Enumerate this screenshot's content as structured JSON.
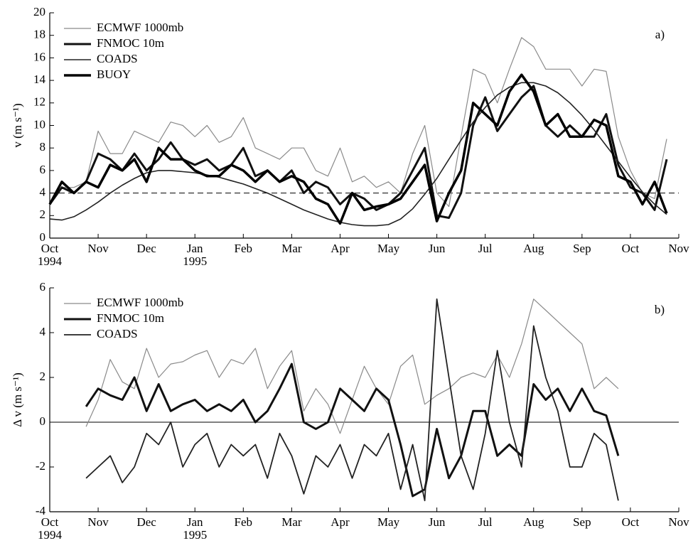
{
  "chart_data": [
    {
      "type": "line",
      "panel_label": "a)",
      "ylabel": "v (m s⁻¹)",
      "x": [
        0,
        0.25,
        0.5,
        0.75,
        1,
        1.25,
        1.5,
        1.75,
        2,
        2.25,
        2.5,
        2.75,
        3,
        3.25,
        3.5,
        3.75,
        4,
        4.25,
        4.5,
        4.75,
        5,
        5.25,
        5.5,
        5.75,
        6,
        6.25,
        6.5,
        6.75,
        7,
        7.25,
        7.5,
        7.75,
        8,
        8.25,
        8.5,
        8.75,
        9,
        9.25,
        9.5,
        9.75,
        10,
        10.25,
        10.5,
        10.75,
        11,
        11.25,
        11.5,
        11.75,
        12,
        12.25,
        12.5,
        12.75
      ],
      "xlim": [
        0,
        13
      ],
      "xticks": [
        {
          "value": 0,
          "label": "Oct"
        },
        {
          "value": 1,
          "label": "Nov"
        },
        {
          "value": 2,
          "label": "Dec"
        },
        {
          "value": 3,
          "label": "Jan"
        },
        {
          "value": 4,
          "label": "Feb"
        },
        {
          "value": 5,
          "label": "Mar"
        },
        {
          "value": 6,
          "label": "Apr"
        },
        {
          "value": 7,
          "label": "May"
        },
        {
          "value": 8,
          "label": "Jun"
        },
        {
          "value": 9,
          "label": "Jul"
        },
        {
          "value": 10,
          "label": "Aug"
        },
        {
          "value": 11,
          "label": "Sep"
        },
        {
          "value": 12,
          "label": "Oct"
        },
        {
          "value": 13,
          "label": "Nov"
        }
      ],
      "year_labels": [
        {
          "value": 0,
          "label": "1994"
        },
        {
          "value": 3,
          "label": "1995"
        }
      ],
      "ylim": [
        0,
        20
      ],
      "yticks": [
        0,
        2,
        4,
        6,
        8,
        10,
        12,
        14,
        16,
        18,
        20
      ],
      "hline": 4,
      "hline_dashed": true,
      "series": [
        {
          "name": "ECMWF 1000mb",
          "color": "#8a8a8a",
          "line_width": 1.2,
          "values": [
            3,
            4.5,
            4.5,
            5,
            9.5,
            7.5,
            7.5,
            9.5,
            9,
            8.5,
            10.3,
            10,
            9,
            10,
            8.5,
            9,
            10.7,
            8,
            7.5,
            7,
            8,
            8,
            6,
            5.5,
            8,
            5,
            5.5,
            4.5,
            5,
            4,
            7.5,
            10,
            4,
            2.8,
            9,
            15,
            14.5,
            12,
            15,
            17.8,
            17,
            15,
            15,
            15,
            13.5,
            15,
            14.8,
            9,
            6,
            4,
            3.5,
            8.8
          ]
        },
        {
          "name": "FNMOC 10m",
          "color": "#111111",
          "line_width": 3,
          "values": [
            3,
            4.5,
            4,
            5,
            7.5,
            7,
            6,
            7.5,
            6,
            7,
            8.5,
            7,
            6.5,
            7,
            6,
            6.5,
            8,
            5.5,
            6,
            5,
            6,
            4,
            5,
            4.5,
            3,
            4,
            3.5,
            2.5,
            3,
            4,
            6,
            8,
            2,
            1.8,
            4,
            10,
            12.5,
            9.5,
            11,
            12.5,
            13.5,
            10,
            9,
            10,
            9,
            9,
            11,
            6.5,
            4.5,
            4,
            2.5,
            7
          ]
        },
        {
          "name": "COADS",
          "color": "#222222",
          "line_width": 1.6,
          "values": [
            1.7,
            1.6,
            1.9,
            2.5,
            3.2,
            4,
            4.7,
            5.3,
            5.8,
            6,
            6,
            5.9,
            5.8,
            5.6,
            5.4,
            5.1,
            4.8,
            4.4,
            4,
            3.5,
            3,
            2.5,
            2.1,
            1.7,
            1.4,
            1.2,
            1.1,
            1.1,
            1.2,
            1.7,
            2.6,
            3.9,
            5.3,
            7,
            8.7,
            10.3,
            11.6,
            12.7,
            13.4,
            13.8,
            13.8,
            13.5,
            12.9,
            12,
            10.9,
            9.6,
            8.2,
            6.8,
            5.4,
            4.1,
            3,
            2.1
          ]
        },
        {
          "name": "BUOY",
          "color": "#000000",
          "line_width": 3.5,
          "values": [
            3,
            5,
            4,
            5,
            4.5,
            6.5,
            6,
            7,
            5,
            8,
            7,
            7,
            6,
            5.5,
            5.5,
            6.5,
            6,
            5,
            6,
            5,
            5.5,
            5,
            3.5,
            3,
            1.3,
            4,
            2.5,
            2.8,
            3,
            3.5,
            5,
            6.5,
            1.5,
            4,
            6,
            12,
            11,
            10,
            13,
            14.5,
            13,
            10,
            11,
            9,
            9,
            10.5,
            10,
            5.5,
            5,
            3,
            5,
            2.2
          ]
        }
      ]
    },
    {
      "type": "line",
      "panel_label": "b)",
      "ylabel": "Δ v (m s⁻¹)",
      "x": [
        0.75,
        1,
        1.25,
        1.5,
        1.75,
        2,
        2.25,
        2.5,
        2.75,
        3,
        3.25,
        3.5,
        3.75,
        4,
        4.25,
        4.5,
        4.75,
        5,
        5.25,
        5.5,
        5.75,
        6,
        6.25,
        6.5,
        6.75,
        7,
        7.25,
        7.5,
        7.75,
        8,
        8.25,
        8.5,
        8.75,
        9,
        9.25,
        9.5,
        9.75,
        10,
        10.25,
        10.5,
        10.75,
        11,
        11.25,
        11.5,
        11.75
      ],
      "xlim": [
        0,
        13
      ],
      "xticks": [
        {
          "value": 0,
          "label": "Oct"
        },
        {
          "value": 1,
          "label": "Nov"
        },
        {
          "value": 2,
          "label": "Dec"
        },
        {
          "value": 3,
          "label": "Jan"
        },
        {
          "value": 4,
          "label": "Feb"
        },
        {
          "value": 5,
          "label": "Mar"
        },
        {
          "value": 6,
          "label": "Apr"
        },
        {
          "value": 7,
          "label": "May"
        },
        {
          "value": 8,
          "label": "Jun"
        },
        {
          "value": 9,
          "label": "Jul"
        },
        {
          "value": 10,
          "label": "Aug"
        },
        {
          "value": 11,
          "label": "Sep"
        },
        {
          "value": 12,
          "label": "Oct"
        },
        {
          "value": 13,
          "label": "Nov"
        }
      ],
      "year_labels": [
        {
          "value": 0,
          "label": "1994"
        },
        {
          "value": 3,
          "label": "1995"
        }
      ],
      "ylim": [
        -4,
        6
      ],
      "yticks": [
        -4,
        -2,
        0,
        2,
        4,
        6
      ],
      "hline": 0,
      "hline_dashed": false,
      "series": [
        {
          "name": "ECMWF 1000mb",
          "color": "#8a8a8a",
          "line_width": 1.2,
          "values": [
            -0.2,
            1,
            2.8,
            1.8,
            1.5,
            3.3,
            2,
            2.6,
            2.7,
            3,
            3.2,
            2,
            2.8,
            2.6,
            3.3,
            1.5,
            2.5,
            3.2,
            0.5,
            1.5,
            0.8,
            -0.5,
            1,
            2.5,
            1.5,
            0.8,
            2.5,
            3,
            0.8,
            1.2,
            1.5,
            2,
            2.2,
            2,
            3,
            2,
            3.5,
            5.5,
            5,
            4.5,
            4,
            3.5,
            1.5,
            2,
            1.5
          ]
        },
        {
          "name": "FNMOC 10m",
          "color": "#111111",
          "line_width": 3,
          "values": [
            0.7,
            1.5,
            1.2,
            1,
            2,
            0.5,
            1.7,
            0.5,
            0.8,
            1,
            0.5,
            0.8,
            0.5,
            1,
            0,
            0.5,
            1.5,
            2.6,
            0,
            -0.3,
            0,
            1.5,
            1,
            0.5,
            1.5,
            1,
            -1,
            -3.3,
            -3,
            -0.3,
            -2.5,
            -1.5,
            0.5,
            0.5,
            -1.5,
            -1,
            -1.5,
            1.7,
            1,
            1.5,
            0.5,
            1.5,
            0.5,
            0.3,
            -1.5
          ]
        },
        {
          "name": "COADS",
          "color": "#222222",
          "line_width": 1.8,
          "values": [
            -2.5,
            -2,
            -1.5,
            -2.7,
            -2,
            -0.5,
            -1,
            0,
            -2,
            -1,
            -0.5,
            -2,
            -1,
            -1.5,
            -1,
            -2.5,
            -0.5,
            -1.5,
            -3.2,
            -1.5,
            -2,
            -1,
            -2.5,
            -1,
            -1.5,
            -0.5,
            -3,
            -1,
            -3.5,
            5.5,
            2,
            -1.5,
            -3,
            -0.5,
            3.2,
            0,
            -2,
            4.3,
            2,
            0.5,
            -2,
            -2,
            -0.5,
            -1,
            -3.5
          ]
        }
      ]
    }
  ]
}
